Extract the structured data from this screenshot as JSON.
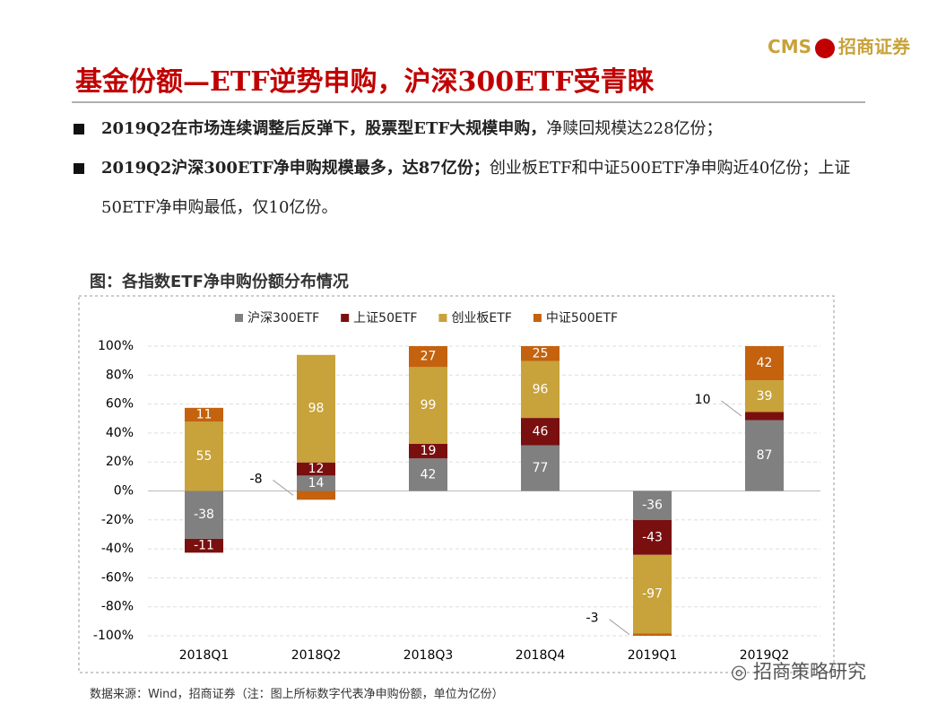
{
  "header": {
    "logo_text": "CMS",
    "company": "招商证券"
  },
  "title": "基金份额—ETF逆势申购，沪深300ETF受青睐",
  "bullets": [
    {
      "bold": "2019Q2在市场连续调整后反弹下，股票型ETF大规模申购，",
      "text": "净赎回规模达228亿份；"
    },
    {
      "bold": "2019Q2沪深300ETF净申购规模最多，达87亿份；",
      "text": "创业板ETF和中证500ETF净申购近40亿份；上证50ETF净申购最低，仅10亿份。"
    }
  ],
  "chart_data": {
    "type": "bar",
    "stacking": "percent",
    "title": "图：各指数ETF净申购份额分布情况",
    "categories": [
      "2018Q1",
      "2018Q2",
      "2018Q3",
      "2018Q4",
      "2019Q1",
      "2019Q2"
    ],
    "series": [
      {
        "name": "沪深300ETF",
        "color": "#808080",
        "values": [
          -38,
          14,
          42,
          77,
          -36,
          87
        ]
      },
      {
        "name": "上证50ETF",
        "color": "#7a0f10",
        "values": [
          -11,
          12,
          19,
          46,
          -43,
          10
        ]
      },
      {
        "name": "创业板ETF",
        "color": "#c8a23a",
        "values": [
          55,
          98,
          99,
          96,
          -97,
          39
        ]
      },
      {
        "name": "中证500ETF",
        "color": "#c4620e",
        "values": [
          11,
          -8,
          27,
          25,
          -3,
          42
        ]
      }
    ],
    "ylim": [
      -100,
      100
    ],
    "yticks": [
      {
        "value": -100,
        "label": "-100%"
      },
      {
        "value": -80,
        "label": "-80%"
      },
      {
        "value": -60,
        "label": "-60%"
      },
      {
        "value": -40,
        "label": "-40%"
      },
      {
        "value": -20,
        "label": "-20%"
      },
      {
        "value": 0,
        "label": "0%"
      },
      {
        "value": 20,
        "label": "20%"
      },
      {
        "value": 40,
        "label": "40%"
      },
      {
        "value": 60,
        "label": "60%"
      },
      {
        "value": 80,
        "label": "80%"
      },
      {
        "value": 100,
        "label": "100%"
      }
    ],
    "grid": true,
    "legend": "top"
  },
  "source": "数据来源：Wind，招商证券（注：图上所标数字代表净申购份额，单位为亿份）",
  "watermark": "招商策略研究"
}
